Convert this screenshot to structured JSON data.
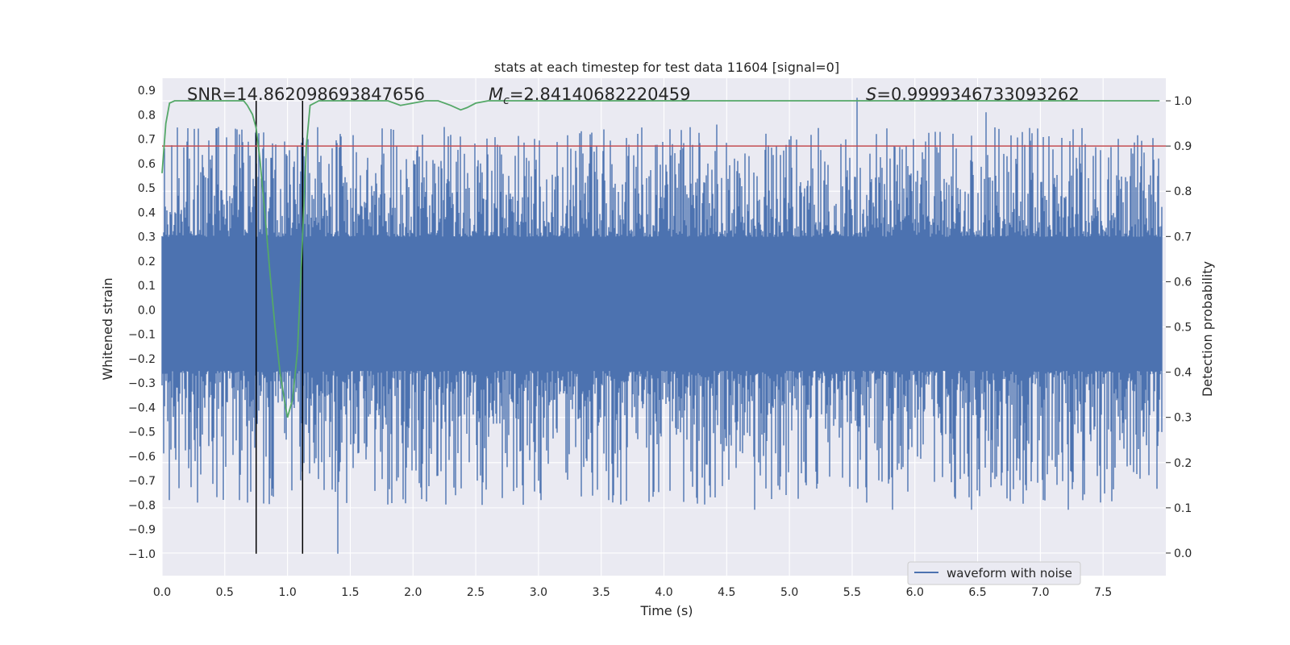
{
  "chart_data": {
    "type": "line",
    "title": "stats at each timestep for test data 11604 [signal=0]",
    "xlabel": "Time (s)",
    "ylabel": "Whitened strain",
    "y2label": "Detection probability",
    "xlim": [
      0.0,
      8.0
    ],
    "ylim": [
      -1.09,
      0.95
    ],
    "y2lim": [
      -0.05,
      1.05
    ],
    "xticks": [
      "0.0",
      "0.5",
      "1.0",
      "1.5",
      "2.0",
      "2.5",
      "3.0",
      "3.5",
      "4.0",
      "4.5",
      "5.0",
      "5.5",
      "6.0",
      "6.5",
      "7.0",
      "7.5"
    ],
    "yticks": [
      "0.9",
      "0.8",
      "0.7",
      "0.6",
      "0.5",
      "0.4",
      "0.3",
      "0.2",
      "0.1",
      "0.0",
      "−0.1",
      "−0.2",
      "−0.3",
      "−0.4",
      "−0.5",
      "−0.6",
      "−0.7",
      "−0.8",
      "−0.9",
      "−1.0"
    ],
    "y2ticks": [
      "1.0",
      "0.9",
      "0.8",
      "0.7",
      "0.6",
      "0.5",
      "0.4",
      "0.3",
      "0.2",
      "0.1",
      "0.0"
    ],
    "series": [
      {
        "name": "waveform with noise",
        "axis": "left",
        "color": "#4c72b0",
        "kind": "noise",
        "x_range": [
          0.0,
          7.97
        ],
        "core_band": [
          -0.25,
          0.3
        ],
        "typical_max": 0.75,
        "typical_min": -0.8,
        "peaks": [
          [
            0.45,
            0.75
          ],
          [
            5.54,
            0.87
          ],
          [
            6.57,
            0.81
          ],
          [
            4.42,
            0.76
          ],
          [
            3.52,
            0.74
          ],
          [
            0.2,
            0.69
          ],
          [
            1.16,
            0.7
          ]
        ],
        "troughs": [
          [
            1.4,
            -1.0
          ],
          [
            0.06,
            -0.78
          ],
          [
            4.72,
            -0.82
          ],
          [
            5.82,
            -0.82
          ],
          [
            6.45,
            -0.82
          ],
          [
            7.22,
            -0.82
          ],
          [
            2.55,
            -0.8
          ],
          [
            2.34,
            -0.76
          ],
          [
            3.6,
            -0.76
          ]
        ]
      },
      {
        "name": "detection probability",
        "axis": "right",
        "color": "#55a868",
        "x": [
          0.0,
          0.03,
          0.06,
          0.1,
          0.15,
          0.2,
          0.3,
          0.4,
          0.5,
          0.6,
          0.65,
          0.68,
          0.72,
          0.75,
          0.78,
          0.82,
          0.86,
          0.9,
          0.94,
          0.98,
          1.0,
          1.04,
          1.08,
          1.12,
          1.15,
          1.18,
          1.25,
          1.4,
          1.6,
          1.8,
          1.9,
          2.0,
          2.1,
          2.2,
          2.3,
          2.38,
          2.43,
          2.5,
          2.6,
          2.8,
          3.0,
          4.0,
          5.0,
          6.0,
          7.0,
          7.95
        ],
        "y": [
          0.84,
          0.95,
          0.995,
          1.0,
          1.0,
          1.0,
          1.0,
          1.0,
          1.0,
          1.0,
          1.0,
          0.99,
          0.97,
          0.94,
          0.87,
          0.75,
          0.62,
          0.5,
          0.4,
          0.33,
          0.3,
          0.34,
          0.45,
          0.7,
          0.9,
          0.99,
          1.0,
          1.0,
          1.0,
          1.0,
          0.99,
          0.995,
          1.0,
          1.0,
          0.99,
          0.98,
          0.985,
          0.995,
          1.0,
          1.0,
          1.0,
          1.0,
          1.0,
          1.0,
          1.0,
          1.0
        ]
      },
      {
        "name": "threshold",
        "axis": "right",
        "color": "#c44e52",
        "value": 0.9
      }
    ],
    "vlines": [
      0.75,
      1.12
    ],
    "annotations": {
      "snr": "SNR=14.862098693847656",
      "mc_symbol": "M",
      "mc_sub": "c",
      "mc_value": "=2.84140682220459",
      "s_symbol": "S",
      "s_value": "=0.9999346733093262"
    },
    "legend": {
      "position": "lower-right",
      "entries": [
        "waveform with noise"
      ]
    },
    "grid": true
  }
}
